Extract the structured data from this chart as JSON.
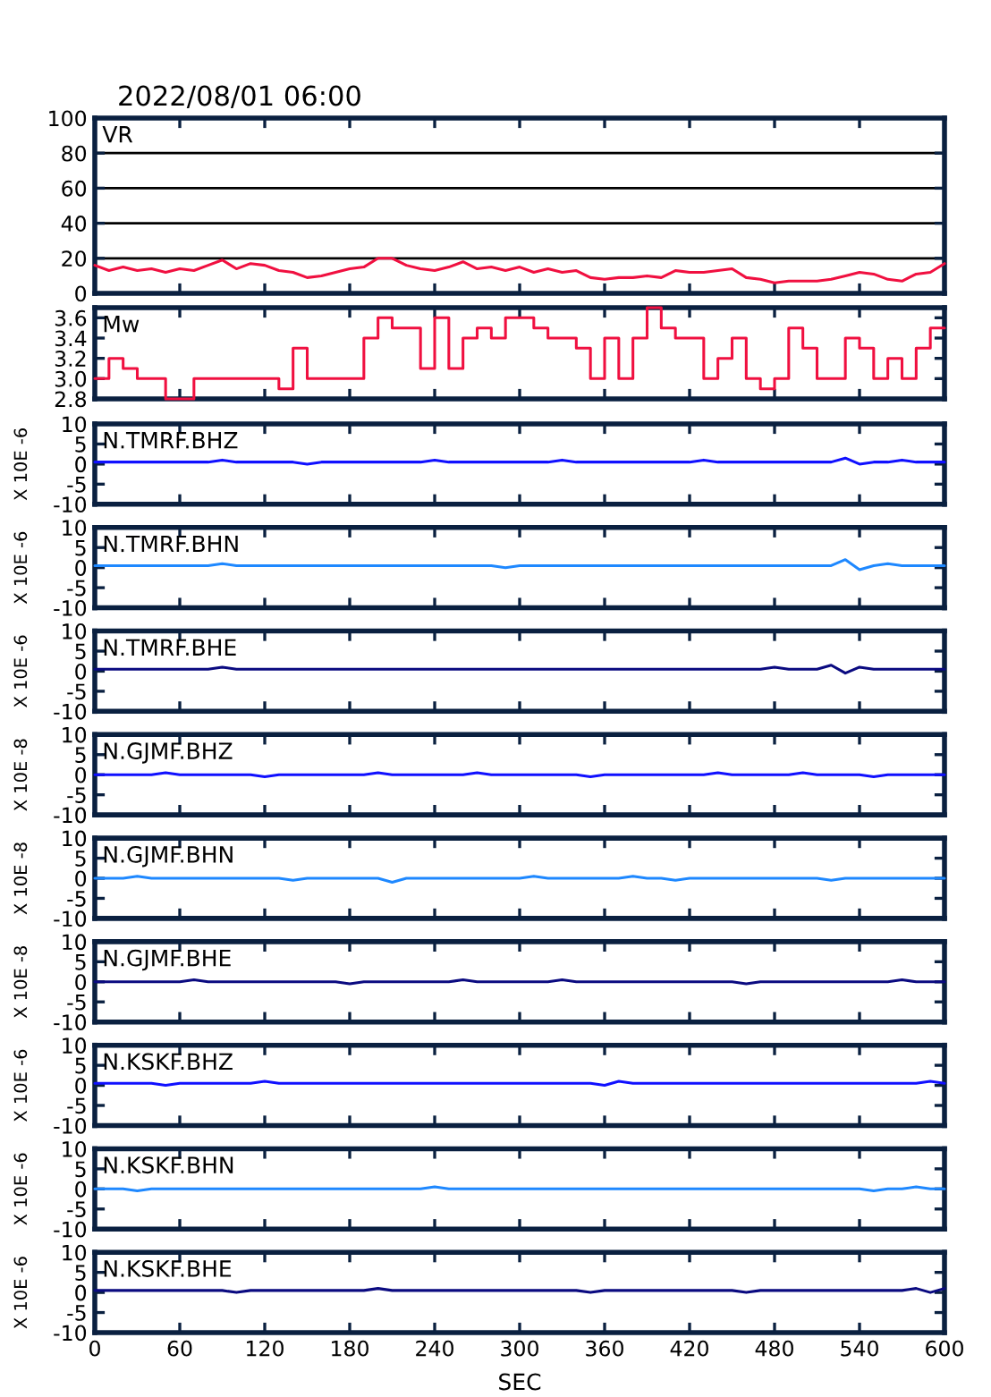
{
  "chart_data": [
    {
      "type": "line",
      "title": "VR",
      "annotations": [
        "2022/08/01 06:00"
      ],
      "x": [
        0,
        10,
        20,
        30,
        40,
        50,
        60,
        70,
        80,
        90,
        100,
        110,
        120,
        130,
        140,
        150,
        160,
        170,
        180,
        190,
        200,
        210,
        220,
        230,
        240,
        250,
        260,
        270,
        280,
        290,
        300,
        310,
        320,
        330,
        340,
        350,
        360,
        370,
        380,
        390,
        400,
        410,
        420,
        430,
        440,
        450,
        460,
        470,
        480,
        490,
        500,
        510,
        520,
        530,
        540,
        550,
        560,
        570,
        580,
        590,
        600
      ],
      "xlim": [
        0,
        600
      ],
      "xticks": [
        0,
        60,
        120,
        180,
        240,
        300,
        360,
        420,
        480,
        540,
        600
      ],
      "ylim": [
        0,
        100
      ],
      "yticks": [
        0,
        20,
        40,
        60,
        80,
        100
      ],
      "grid": "y",
      "tick_labels": "y",
      "series": [
        {
          "color": "#f01040",
          "values": [
            16,
            13,
            15,
            13,
            14,
            12,
            14,
            13,
            16,
            19,
            14,
            17,
            16,
            13,
            12,
            9,
            10,
            12,
            14,
            15,
            20,
            20,
            16,
            14,
            13,
            15,
            18,
            14,
            15,
            13,
            15,
            12,
            14,
            12,
            13,
            9,
            8,
            9,
            9,
            10,
            9,
            13,
            12,
            12,
            13,
            14,
            9,
            8,
            6,
            7,
            7,
            7,
            8,
            10,
            12,
            11,
            8,
            7,
            11,
            12,
            17
          ]
        }
      ]
    },
    {
      "type": "step",
      "title": "Mw",
      "x": [
        0,
        10,
        20,
        30,
        40,
        50,
        60,
        70,
        80,
        90,
        100,
        110,
        120,
        130,
        140,
        150,
        160,
        170,
        180,
        190,
        200,
        210,
        220,
        230,
        240,
        250,
        260,
        270,
        280,
        290,
        300,
        310,
        320,
        330,
        340,
        350,
        360,
        370,
        380,
        390,
        400,
        410,
        420,
        430,
        440,
        450,
        460,
        470,
        480,
        490,
        500,
        510,
        520,
        530,
        540,
        550,
        560,
        570,
        580,
        590,
        600
      ],
      "xlim": [
        0,
        600
      ],
      "xticks": [
        0,
        60,
        120,
        180,
        240,
        300,
        360,
        420,
        480,
        540,
        600
      ],
      "ylim": [
        2.8,
        3.7
      ],
      "yticks": [
        2.8,
        {
          "value": 3.0,
          "label": "3.0"
        },
        3.2,
        3.4,
        3.6
      ],
      "tick_labels": "y",
      "series": [
        {
          "color": "#f01040",
          "values": [
            3.0,
            3.2,
            3.1,
            3.0,
            3.0,
            2.8,
            2.8,
            3.0,
            3.0,
            3.0,
            3.0,
            3.0,
            3.0,
            2.9,
            3.3,
            3.0,
            3.0,
            3.0,
            3.0,
            3.4,
            3.6,
            3.5,
            3.5,
            3.1,
            3.6,
            3.1,
            3.4,
            3.5,
            3.4,
            3.6,
            3.6,
            3.5,
            3.4,
            3.4,
            3.3,
            3.0,
            3.4,
            3.0,
            3.4,
            3.7,
            3.5,
            3.4,
            3.4,
            3.0,
            3.2,
            3.4,
            3.0,
            2.9,
            3.0,
            3.5,
            3.3,
            3.0,
            3.0,
            3.4,
            3.3,
            3.0,
            3.2,
            3.0,
            3.3,
            3.5,
            3.5
          ]
        }
      ]
    },
    {
      "type": "line",
      "title": "N.TMRF.BHZ",
      "ylabel": "X 10E -6",
      "x": [
        0,
        10,
        20,
        30,
        40,
        50,
        60,
        70,
        80,
        90,
        100,
        110,
        120,
        130,
        140,
        150,
        160,
        170,
        180,
        190,
        200,
        210,
        220,
        230,
        240,
        250,
        260,
        270,
        280,
        290,
        300,
        310,
        320,
        330,
        340,
        350,
        360,
        370,
        380,
        390,
        400,
        410,
        420,
        430,
        440,
        450,
        460,
        470,
        480,
        490,
        500,
        510,
        520,
        530,
        540,
        550,
        560,
        570,
        580,
        590,
        600
      ],
      "xlim": [
        0,
        600
      ],
      "xticks": [
        0,
        60,
        120,
        180,
        240,
        300,
        360,
        420,
        480,
        540,
        600
      ],
      "ylim": [
        -10,
        10
      ],
      "yticks": [
        -10,
        -5,
        0,
        5,
        10
      ],
      "tick_labels": "y",
      "series": [
        {
          "color": "#1010ff",
          "values": [
            0.5,
            0.5,
            0.5,
            0.5,
            0.5,
            0.5,
            0.5,
            0.5,
            0.5,
            1,
            0.5,
            0.5,
            0.5,
            0.5,
            0.5,
            0,
            0.5,
            0.5,
            0.5,
            0.5,
            0.5,
            0.5,
            0.5,
            0.5,
            1,
            0.5,
            0.5,
            0.5,
            0.5,
            0.5,
            0.5,
            0.5,
            0.5,
            1,
            0.5,
            0.5,
            0.5,
            0.5,
            0.5,
            0.5,
            0.5,
            0.5,
            0.5,
            1,
            0.5,
            0.5,
            0.5,
            0.5,
            0.5,
            0.5,
            0.5,
            0.5,
            0.5,
            1.5,
            0,
            0.5,
            0.5,
            1,
            0.5,
            0.5,
            0.5
          ]
        }
      ]
    },
    {
      "type": "line",
      "title": "N.TMRF.BHN",
      "ylabel": "X 10E -6",
      "x": [
        0,
        10,
        20,
        30,
        40,
        50,
        60,
        70,
        80,
        90,
        100,
        110,
        120,
        130,
        140,
        150,
        160,
        170,
        180,
        190,
        200,
        210,
        220,
        230,
        240,
        250,
        260,
        270,
        280,
        290,
        300,
        310,
        320,
        330,
        340,
        350,
        360,
        370,
        380,
        390,
        400,
        410,
        420,
        430,
        440,
        450,
        460,
        470,
        480,
        490,
        500,
        510,
        520,
        530,
        540,
        550,
        560,
        570,
        580,
        590,
        600
      ],
      "xlim": [
        0,
        600
      ],
      "xticks": [
        0,
        60,
        120,
        180,
        240,
        300,
        360,
        420,
        480,
        540,
        600
      ],
      "ylim": [
        -10,
        10
      ],
      "yticks": [
        -10,
        -5,
        0,
        5,
        10
      ],
      "tick_labels": "y",
      "series": [
        {
          "color": "#1e88ff",
          "values": [
            0.5,
            0.5,
            0.5,
            0.5,
            0.5,
            0.5,
            0.5,
            0.5,
            0.5,
            1,
            0.5,
            0.5,
            0.5,
            0.5,
            0.5,
            0.5,
            0.5,
            0.5,
            0.5,
            0.5,
            0.5,
            0.5,
            0.5,
            0.5,
            0.5,
            0.5,
            0.5,
            0.5,
            0.5,
            0,
            0.5,
            0.5,
            0.5,
            0.5,
            0.5,
            0.5,
            0.5,
            0.5,
            0.5,
            0.5,
            0.5,
            0.5,
            0.5,
            0.5,
            0.5,
            0.5,
            0.5,
            0.5,
            0.5,
            0.5,
            0.5,
            0.5,
            0.5,
            2,
            -0.5,
            0.5,
            1,
            0.5,
            0.5,
            0.5,
            0.5
          ]
        }
      ]
    },
    {
      "type": "line",
      "title": "N.TMRF.BHE",
      "ylabel": "X 10E -6",
      "x": [
        0,
        10,
        20,
        30,
        40,
        50,
        60,
        70,
        80,
        90,
        100,
        110,
        120,
        130,
        140,
        150,
        160,
        170,
        180,
        190,
        200,
        210,
        220,
        230,
        240,
        250,
        260,
        270,
        280,
        290,
        300,
        310,
        320,
        330,
        340,
        350,
        360,
        370,
        380,
        390,
        400,
        410,
        420,
        430,
        440,
        450,
        460,
        470,
        480,
        490,
        500,
        510,
        520,
        530,
        540,
        550,
        560,
        570,
        580,
        590,
        600
      ],
      "xlim": [
        0,
        600
      ],
      "xticks": [
        0,
        60,
        120,
        180,
        240,
        300,
        360,
        420,
        480,
        540,
        600
      ],
      "ylim": [
        -10,
        10
      ],
      "yticks": [
        -10,
        -5,
        0,
        5,
        10
      ],
      "tick_labels": "y",
      "series": [
        {
          "color": "#0a0a80",
          "values": [
            0.5,
            0.5,
            0.5,
            0.5,
            0.5,
            0.5,
            0.5,
            0.5,
            0.5,
            1,
            0.5,
            0.5,
            0.5,
            0.5,
            0.5,
            0.5,
            0.5,
            0.5,
            0.5,
            0.5,
            0.5,
            0.5,
            0.5,
            0.5,
            0.5,
            0.5,
            0.5,
            0.5,
            0.5,
            0.5,
            0.5,
            0.5,
            0.5,
            0.5,
            0.5,
            0.5,
            0.5,
            0.5,
            0.5,
            0.5,
            0.5,
            0.5,
            0.5,
            0.5,
            0.5,
            0.5,
            0.5,
            0.5,
            1,
            0.5,
            0.5,
            0.5,
            1.5,
            -0.5,
            1,
            0.5,
            0.5,
            0.5,
            0.5,
            0.5,
            0.5
          ]
        }
      ]
    },
    {
      "type": "line",
      "title": "N.GJMF.BHZ",
      "ylabel": "X 10E -8",
      "x": [
        0,
        10,
        20,
        30,
        40,
        50,
        60,
        70,
        80,
        90,
        100,
        110,
        120,
        130,
        140,
        150,
        160,
        170,
        180,
        190,
        200,
        210,
        220,
        230,
        240,
        250,
        260,
        270,
        280,
        290,
        300,
        310,
        320,
        330,
        340,
        350,
        360,
        370,
        380,
        390,
        400,
        410,
        420,
        430,
        440,
        450,
        460,
        470,
        480,
        490,
        500,
        510,
        520,
        530,
        540,
        550,
        560,
        570,
        580,
        590,
        600
      ],
      "xlim": [
        0,
        600
      ],
      "xticks": [
        0,
        60,
        120,
        180,
        240,
        300,
        360,
        420,
        480,
        540,
        600
      ],
      "ylim": [
        -10,
        10
      ],
      "yticks": [
        -10,
        -5,
        0,
        5,
        10
      ],
      "tick_labels": "y",
      "series": [
        {
          "color": "#1010ff",
          "values": [
            0,
            0,
            0,
            0,
            0,
            0.5,
            0,
            0,
            0,
            0,
            0,
            0,
            -0.5,
            0,
            0,
            0,
            0,
            0,
            0,
            0,
            0.5,
            0,
            0,
            0,
            0,
            0,
            0,
            0.5,
            0,
            0,
            0,
            0,
            0,
            0,
            0,
            -0.5,
            0,
            0,
            0,
            0,
            0,
            0,
            0,
            0,
            0.5,
            0,
            0,
            0,
            0,
            0,
            0.5,
            0,
            0,
            0,
            0,
            -0.5,
            0,
            0,
            0,
            0,
            0
          ]
        }
      ]
    },
    {
      "type": "line",
      "title": "N.GJMF.BHN",
      "ylabel": "X 10E -8",
      "x": [
        0,
        10,
        20,
        30,
        40,
        50,
        60,
        70,
        80,
        90,
        100,
        110,
        120,
        130,
        140,
        150,
        160,
        170,
        180,
        190,
        200,
        210,
        220,
        230,
        240,
        250,
        260,
        270,
        280,
        290,
        300,
        310,
        320,
        330,
        340,
        350,
        360,
        370,
        380,
        390,
        400,
        410,
        420,
        430,
        440,
        450,
        460,
        470,
        480,
        490,
        500,
        510,
        520,
        530,
        540,
        550,
        560,
        570,
        580,
        590,
        600
      ],
      "xlim": [
        0,
        600
      ],
      "xticks": [
        0,
        60,
        120,
        180,
        240,
        300,
        360,
        420,
        480,
        540,
        600
      ],
      "ylim": [
        -10,
        10
      ],
      "yticks": [
        -10,
        -5,
        0,
        5,
        10
      ],
      "tick_labels": "y",
      "series": [
        {
          "color": "#1e88ff",
          "values": [
            0,
            0,
            0,
            0.5,
            0,
            0,
            0,
            0,
            0,
            0,
            0,
            0,
            0,
            0,
            -0.5,
            0,
            0,
            0,
            0,
            0,
            0,
            -1,
            0,
            0,
            0,
            0,
            0,
            0,
            0,
            0,
            0,
            0.5,
            0,
            0,
            0,
            0,
            0,
            0,
            0.5,
            0,
            0,
            -0.5,
            0,
            0,
            0,
            0,
            0,
            0,
            0,
            0,
            0,
            0,
            -0.5,
            0,
            0,
            0,
            0,
            0,
            0,
            0,
            0
          ]
        }
      ]
    },
    {
      "type": "line",
      "title": "N.GJMF.BHE",
      "ylabel": "X 10E -8",
      "x": [
        0,
        10,
        20,
        30,
        40,
        50,
        60,
        70,
        80,
        90,
        100,
        110,
        120,
        130,
        140,
        150,
        160,
        170,
        180,
        190,
        200,
        210,
        220,
        230,
        240,
        250,
        260,
        270,
        280,
        290,
        300,
        310,
        320,
        330,
        340,
        350,
        360,
        370,
        380,
        390,
        400,
        410,
        420,
        430,
        440,
        450,
        460,
        470,
        480,
        490,
        500,
        510,
        520,
        530,
        540,
        550,
        560,
        570,
        580,
        590,
        600
      ],
      "xlim": [
        0,
        600
      ],
      "xticks": [
        0,
        60,
        120,
        180,
        240,
        300,
        360,
        420,
        480,
        540,
        600
      ],
      "ylim": [
        -10,
        10
      ],
      "yticks": [
        -10,
        -5,
        0,
        5,
        10
      ],
      "tick_labels": "y",
      "series": [
        {
          "color": "#0a0a80",
          "values": [
            0,
            0,
            0,
            0,
            0,
            0,
            0,
            0.5,
            0,
            0,
            0,
            0,
            0,
            0,
            0,
            0,
            0,
            0,
            -0.5,
            0,
            0,
            0,
            0,
            0,
            0,
            0,
            0.5,
            0,
            0,
            0,
            0,
            0,
            0,
            0.5,
            0,
            0,
            0,
            0,
            0,
            0,
            0,
            0,
            0,
            0,
            0,
            0,
            -0.5,
            0,
            0,
            0,
            0,
            0,
            0,
            0,
            0,
            0,
            0,
            0.5,
            0,
            0,
            0
          ]
        }
      ]
    },
    {
      "type": "line",
      "title": "N.KSKF.BHZ",
      "ylabel": "X 10E -6",
      "x": [
        0,
        10,
        20,
        30,
        40,
        50,
        60,
        70,
        80,
        90,
        100,
        110,
        120,
        130,
        140,
        150,
        160,
        170,
        180,
        190,
        200,
        210,
        220,
        230,
        240,
        250,
        260,
        270,
        280,
        290,
        300,
        310,
        320,
        330,
        340,
        350,
        360,
        370,
        380,
        390,
        400,
        410,
        420,
        430,
        440,
        450,
        460,
        470,
        480,
        490,
        500,
        510,
        520,
        530,
        540,
        550,
        560,
        570,
        580,
        590,
        600
      ],
      "xlim": [
        0,
        600
      ],
      "xticks": [
        0,
        60,
        120,
        180,
        240,
        300,
        360,
        420,
        480,
        540,
        600
      ],
      "ylim": [
        -10,
        10
      ],
      "yticks": [
        -10,
        -5,
        0,
        5,
        10
      ],
      "tick_labels": "y",
      "series": [
        {
          "color": "#1010ff",
          "values": [
            0.5,
            0.5,
            0.5,
            0.5,
            0.5,
            0,
            0.5,
            0.5,
            0.5,
            0.5,
            0.5,
            0.5,
            1,
            0.5,
            0.5,
            0.5,
            0.5,
            0.5,
            0.5,
            0.5,
            0.5,
            0.5,
            0.5,
            0.5,
            0.5,
            0.5,
            0.5,
            0.5,
            0.5,
            0.5,
            0.5,
            0.5,
            0.5,
            0.5,
            0.5,
            0.5,
            0,
            1,
            0.5,
            0.5,
            0.5,
            0.5,
            0.5,
            0.5,
            0.5,
            0.5,
            0.5,
            0.5,
            0.5,
            0.5,
            0.5,
            0.5,
            0.5,
            0.5,
            0.5,
            0.5,
            0.5,
            0.5,
            0.5,
            1,
            0.5
          ]
        }
      ]
    },
    {
      "type": "line",
      "title": "N.KSKF.BHN",
      "ylabel": "X 10E -6",
      "x": [
        0,
        10,
        20,
        30,
        40,
        50,
        60,
        70,
        80,
        90,
        100,
        110,
        120,
        130,
        140,
        150,
        160,
        170,
        180,
        190,
        200,
        210,
        220,
        230,
        240,
        250,
        260,
        270,
        280,
        290,
        300,
        310,
        320,
        330,
        340,
        350,
        360,
        370,
        380,
        390,
        400,
        410,
        420,
        430,
        440,
        450,
        460,
        470,
        480,
        490,
        500,
        510,
        520,
        530,
        540,
        550,
        560,
        570,
        580,
        590,
        600
      ],
      "xlim": [
        0,
        600
      ],
      "xticks": [
        0,
        60,
        120,
        180,
        240,
        300,
        360,
        420,
        480,
        540,
        600
      ],
      "ylim": [
        -10,
        10
      ],
      "yticks": [
        -10,
        -5,
        0,
        5,
        10
      ],
      "tick_labels": "y",
      "series": [
        {
          "color": "#1e88ff",
          "values": [
            0,
            0,
            0,
            -0.5,
            0,
            0,
            0,
            0,
            0,
            0,
            0,
            0,
            0,
            0,
            0,
            0,
            0,
            0,
            0,
            0,
            0,
            0,
            0,
            0,
            0.5,
            0,
            0,
            0,
            0,
            0,
            0,
            0,
            0,
            0,
            0,
            0,
            0,
            0,
            0,
            0,
            0,
            0,
            0,
            0,
            0,
            0,
            0,
            0,
            0,
            0,
            0,
            0,
            0,
            0,
            0,
            -0.5,
            0,
            0,
            0.5,
            0,
            0
          ]
        }
      ]
    },
    {
      "type": "line",
      "title": "N.KSKF.BHE",
      "ylabel": "X 10E -6",
      "xlabel": "SEC",
      "x": [
        0,
        10,
        20,
        30,
        40,
        50,
        60,
        70,
        80,
        90,
        100,
        110,
        120,
        130,
        140,
        150,
        160,
        170,
        180,
        190,
        200,
        210,
        220,
        230,
        240,
        250,
        260,
        270,
        280,
        290,
        300,
        310,
        320,
        330,
        340,
        350,
        360,
        370,
        380,
        390,
        400,
        410,
        420,
        430,
        440,
        450,
        460,
        470,
        480,
        490,
        500,
        510,
        520,
        530,
        540,
        550,
        560,
        570,
        580,
        590,
        600
      ],
      "xlim": [
        0,
        600
      ],
      "xticks": [
        0,
        60,
        120,
        180,
        240,
        300,
        360,
        420,
        480,
        540,
        600
      ],
      "ylim": [
        -10,
        10
      ],
      "yticks": [
        -10,
        -5,
        0,
        5,
        10
      ],
      "series": [
        {
          "color": "#0a0a80",
          "values": [
            0.5,
            0.5,
            0.5,
            0.5,
            0.5,
            0.5,
            0.5,
            0.5,
            0.5,
            0.5,
            0,
            0.5,
            0.5,
            0.5,
            0.5,
            0.5,
            0.5,
            0.5,
            0.5,
            0.5,
            1,
            0.5,
            0.5,
            0.5,
            0.5,
            0.5,
            0.5,
            0.5,
            0.5,
            0.5,
            0.5,
            0.5,
            0.5,
            0.5,
            0.5,
            0,
            0.5,
            0.5,
            0.5,
            0.5,
            0.5,
            0.5,
            0.5,
            0.5,
            0.5,
            0.5,
            0,
            0.5,
            0.5,
            0.5,
            0.5,
            0.5,
            0.5,
            0.5,
            0.5,
            0.5,
            0.5,
            0.5,
            1,
            0,
            1
          ]
        }
      ]
    }
  ]
}
